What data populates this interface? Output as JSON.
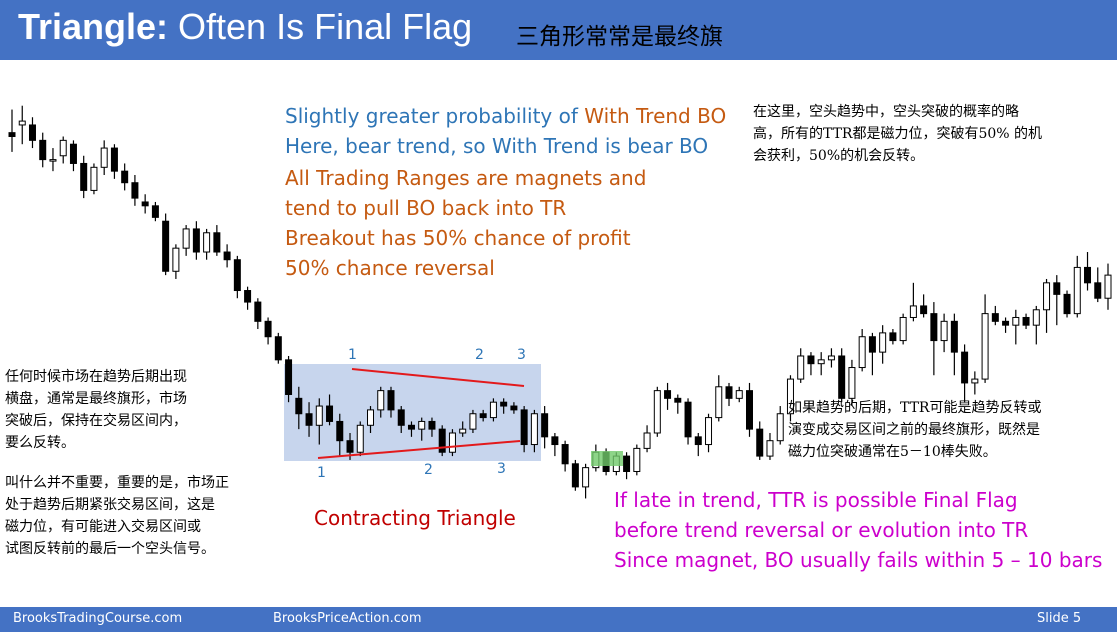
{
  "header": {
    "title_strong": "Triangle:",
    "title_rest": " Often Is Final Flag",
    "title_zh": "三角形常常是最终旗"
  },
  "footer": {
    "left": "BrooksTradingCourse.com",
    "center": "BrooksPriceAction.com",
    "slide": "Slide  5"
  },
  "colors": {
    "header_bg": "#4472c4",
    "blue_text": "#2e75b6",
    "orange_text": "#c55a11",
    "magenta_text": "#cc00cc",
    "red_text": "#c00000",
    "triangle_line": "#e31a1c",
    "range_fill": "#b4c7e7",
    "label_color": "#2e75b6",
    "green_box": "#70c96a"
  },
  "notes": {
    "blue": [
      "Slightly greater probability of ",
      "With Trend BO",
      "Here, bear trend, so With Trend is bear BO"
    ],
    "orange": [
      "All Trading Ranges are magnets and",
      "tend to pull BO back into TR",
      "Breakout has 50% chance of profit",
      "50% chance reversal"
    ],
    "magenta": [
      "If late in trend, TTR is possible Final Flag",
      "before trend reversal or evolution into TR",
      "Since magnet, BO usually fails within 5 – 10 bars"
    ],
    "contracting": "Contracting Triangle",
    "zh_top_right": [
      "在这里，空头趋势中，空头突破的概率的略",
      "高，所有的TTR都是磁力位，突破有50% 的机",
      "会获利，50%的机会反转。"
    ],
    "zh_left_1": [
      "任何时候市场在趋势后期出现",
      "横盘，通常是最终旗形，市场",
      "突破后，保持在交易区间内，",
      "要么反转。"
    ],
    "zh_left_2": [
      "叫什么并不重要，重要的是，市场正",
      " 处于趋势后期紧张交易区间，这是",
      "磁力位，有可能进入交易区间或",
      "试图反转前的最后一个空头信号。"
    ],
    "zh_right": [
      "如果趋势的后期，TTR可能是趋势反转或",
      "演变成交易区间之前的最终旗形，既然是",
      "磁力位突破通常在5－10棒失败。"
    ]
  },
  "chart_data": {
    "type": "candlestick",
    "title": "Triangle: Often Is Final Flag",
    "xlabel": "",
    "ylabel": "",
    "grid": false,
    "y_axis": "none",
    "triangle_labels_top": [
      "1",
      "2",
      "3"
    ],
    "triangle_labels_bottom": [
      "1",
      "2",
      "3"
    ],
    "bars": [
      [
        93,
        92,
        99,
        88
      ],
      [
        95,
        96,
        100,
        90
      ],
      [
        95,
        91,
        97,
        89
      ],
      [
        91,
        86,
        93,
        84
      ],
      [
        86,
        86,
        89,
        83
      ],
      [
        87,
        91,
        92,
        85
      ],
      [
        90,
        85,
        91,
        83
      ],
      [
        85,
        78,
        87,
        76
      ],
      [
        78,
        84,
        85,
        77
      ],
      [
        84,
        89,
        91,
        82
      ],
      [
        89,
        83,
        90,
        81
      ],
      [
        83,
        80,
        85,
        78
      ],
      [
        80,
        76,
        82,
        74
      ],
      [
        75,
        74,
        77,
        72
      ],
      [
        74,
        71,
        75,
        70
      ],
      [
        70,
        57,
        72,
        56
      ],
      [
        57,
        63,
        64,
        55
      ],
      [
        63,
        68,
        69,
        61
      ],
      [
        68,
        62,
        70,
        60
      ],
      [
        62,
        67,
        68,
        60
      ],
      [
        67,
        62,
        69,
        61
      ],
      [
        62,
        60,
        64,
        58
      ],
      [
        60,
        52,
        61,
        50
      ],
      [
        52,
        49,
        53,
        47
      ],
      [
        49,
        44,
        50,
        42
      ],
      [
        44,
        40,
        45,
        38
      ],
      [
        40,
        34,
        41,
        33
      ],
      [
        34,
        25,
        35,
        23
      ],
      [
        24,
        20,
        27,
        16
      ],
      [
        20,
        17,
        23,
        14
      ],
      [
        17,
        22,
        24,
        12
      ],
      [
        22,
        18,
        25,
        17
      ],
      [
        18,
        13,
        20,
        9
      ],
      [
        13,
        10,
        15,
        8
      ],
      [
        10,
        17,
        18,
        9
      ],
      [
        17,
        21,
        22,
        15
      ],
      [
        21,
        26,
        27,
        19
      ],
      [
        26,
        21,
        27,
        19
      ],
      [
        21,
        17,
        22,
        15
      ],
      [
        17,
        16,
        18,
        14
      ],
      [
        16,
        18,
        19,
        13
      ],
      [
        18,
        16,
        19,
        14
      ],
      [
        16,
        10,
        17,
        9
      ],
      [
        10,
        15,
        16,
        9
      ],
      [
        15,
        16,
        18,
        14
      ],
      [
        16,
        20,
        21,
        15
      ],
      [
        20,
        19,
        21,
        18
      ],
      [
        19,
        23,
        24,
        18
      ],
      [
        23,
        22,
        24,
        20
      ],
      [
        22,
        21,
        23,
        20
      ],
      [
        21,
        12,
        22,
        10
      ],
      [
        12,
        20,
        21,
        10
      ],
      [
        20,
        14,
        22,
        11
      ],
      [
        14,
        12,
        15,
        9
      ],
      [
        12,
        7,
        13,
        5
      ],
      [
        7,
        1,
        8,
        0
      ],
      [
        1,
        6,
        7,
        -2
      ],
      [
        6,
        10,
        12,
        5
      ],
      [
        10,
        5,
        11,
        4
      ],
      [
        5,
        9,
        10,
        4
      ],
      [
        9,
        5,
        10,
        3
      ],
      [
        5,
        11,
        12,
        4
      ],
      [
        11,
        15,
        17,
        10
      ],
      [
        15,
        26,
        27,
        14
      ],
      [
        26,
        24,
        28,
        21
      ],
      [
        24,
        23,
        25,
        20
      ],
      [
        23,
        14,
        24,
        12
      ],
      [
        14,
        12,
        15,
        9
      ],
      [
        12,
        19,
        20,
        10
      ],
      [
        19,
        27,
        30,
        18
      ],
      [
        27,
        24,
        28,
        22
      ],
      [
        24,
        26,
        27,
        23
      ],
      [
        26,
        16,
        28,
        14
      ],
      [
        16,
        9,
        18,
        8
      ],
      [
        9,
        13,
        15,
        8
      ],
      [
        13,
        20,
        22,
        12
      ],
      [
        20,
        29,
        30,
        18
      ],
      [
        29,
        35,
        37,
        28
      ],
      [
        35,
        33,
        36,
        30
      ],
      [
        33,
        34,
        36,
        30
      ],
      [
        34,
        35,
        37,
        32
      ],
      [
        35,
        24,
        37,
        23
      ],
      [
        24,
        32,
        34,
        22
      ],
      [
        32,
        40,
        42,
        31
      ],
      [
        40,
        36,
        41,
        30
      ],
      [
        36,
        41,
        43,
        33
      ],
      [
        41,
        39,
        42,
        38
      ],
      [
        39,
        45,
        46,
        38
      ],
      [
        45,
        48,
        54,
        44
      ],
      [
        48,
        46,
        51,
        45
      ],
      [
        46,
        39,
        49,
        30
      ],
      [
        39,
        44,
        46,
        36
      ],
      [
        44,
        36,
        46,
        30
      ],
      [
        36,
        28,
        38,
        23
      ],
      [
        28,
        29,
        31,
        25
      ],
      [
        29,
        46,
        51,
        28
      ],
      [
        46,
        44,
        48,
        43
      ],
      [
        44,
        43,
        45,
        41
      ],
      [
        43,
        45,
        47,
        38
      ],
      [
        45,
        43,
        46,
        42
      ],
      [
        43,
        47,
        48,
        38
      ],
      [
        47,
        54,
        55,
        41
      ],
      [
        54,
        51,
        56,
        43
      ],
      [
        51,
        46,
        52,
        45
      ],
      [
        46,
        58,
        61,
        45
      ],
      [
        58,
        54,
        62,
        52
      ],
      [
        54,
        50,
        58,
        49
      ],
      [
        50,
        56,
        59,
        47
      ]
    ],
    "price_min": -5,
    "price_max": 102
  }
}
